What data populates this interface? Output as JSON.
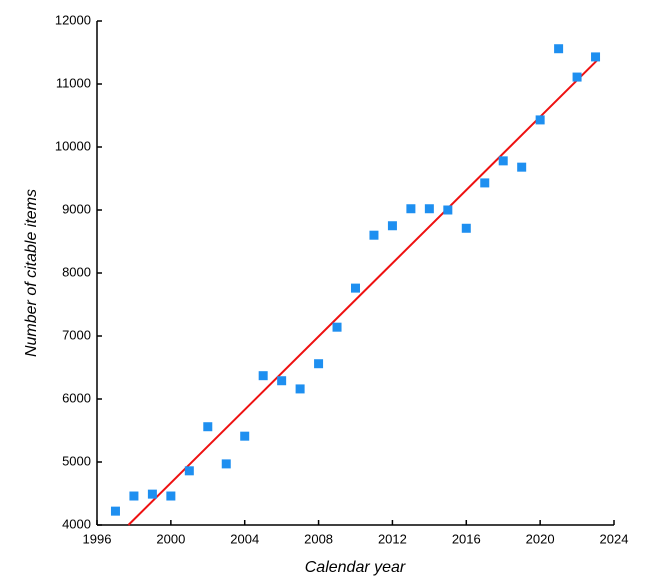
{
  "chart_data": {
    "type": "scatter",
    "x_label": "Calendar year",
    "y_label": "Number of citable items",
    "x": [
      1997,
      1998,
      1999,
      2000,
      2001,
      2002,
      2003,
      2004,
      2005,
      2006,
      2007,
      2008,
      2009,
      2010,
      2011,
      2012,
      2013,
      2014,
      2015,
      2016,
      2017,
      2018,
      2019,
      2020,
      2021,
      2022,
      2023
    ],
    "values": [
      4220,
      4460,
      4490,
      4460,
      4860,
      5560,
      4970,
      5410,
      6370,
      6290,
      6160,
      6560,
      7140,
      7760,
      8600,
      8750,
      9020,
      9020,
      9000,
      8710,
      9430,
      9780,
      9680,
      10430,
      11560,
      11110,
      11430
    ],
    "color": "#1e8ff0",
    "trend_line": {
      "x": [
        1997.7,
        2023.1
      ],
      "values": [
        4000,
        11380
      ],
      "color": "#ee1111"
    },
    "xlim": [
      1996,
      2024
    ],
    "xticks": [
      1996,
      2000,
      2004,
      2008,
      2012,
      2016,
      2020,
      2024
    ],
    "ylim": [
      4000,
      12000
    ],
    "yticks": [
      4000,
      5000,
      6000,
      7000,
      8000,
      9000,
      10000,
      11000,
      12000
    ],
    "grid": false
  }
}
